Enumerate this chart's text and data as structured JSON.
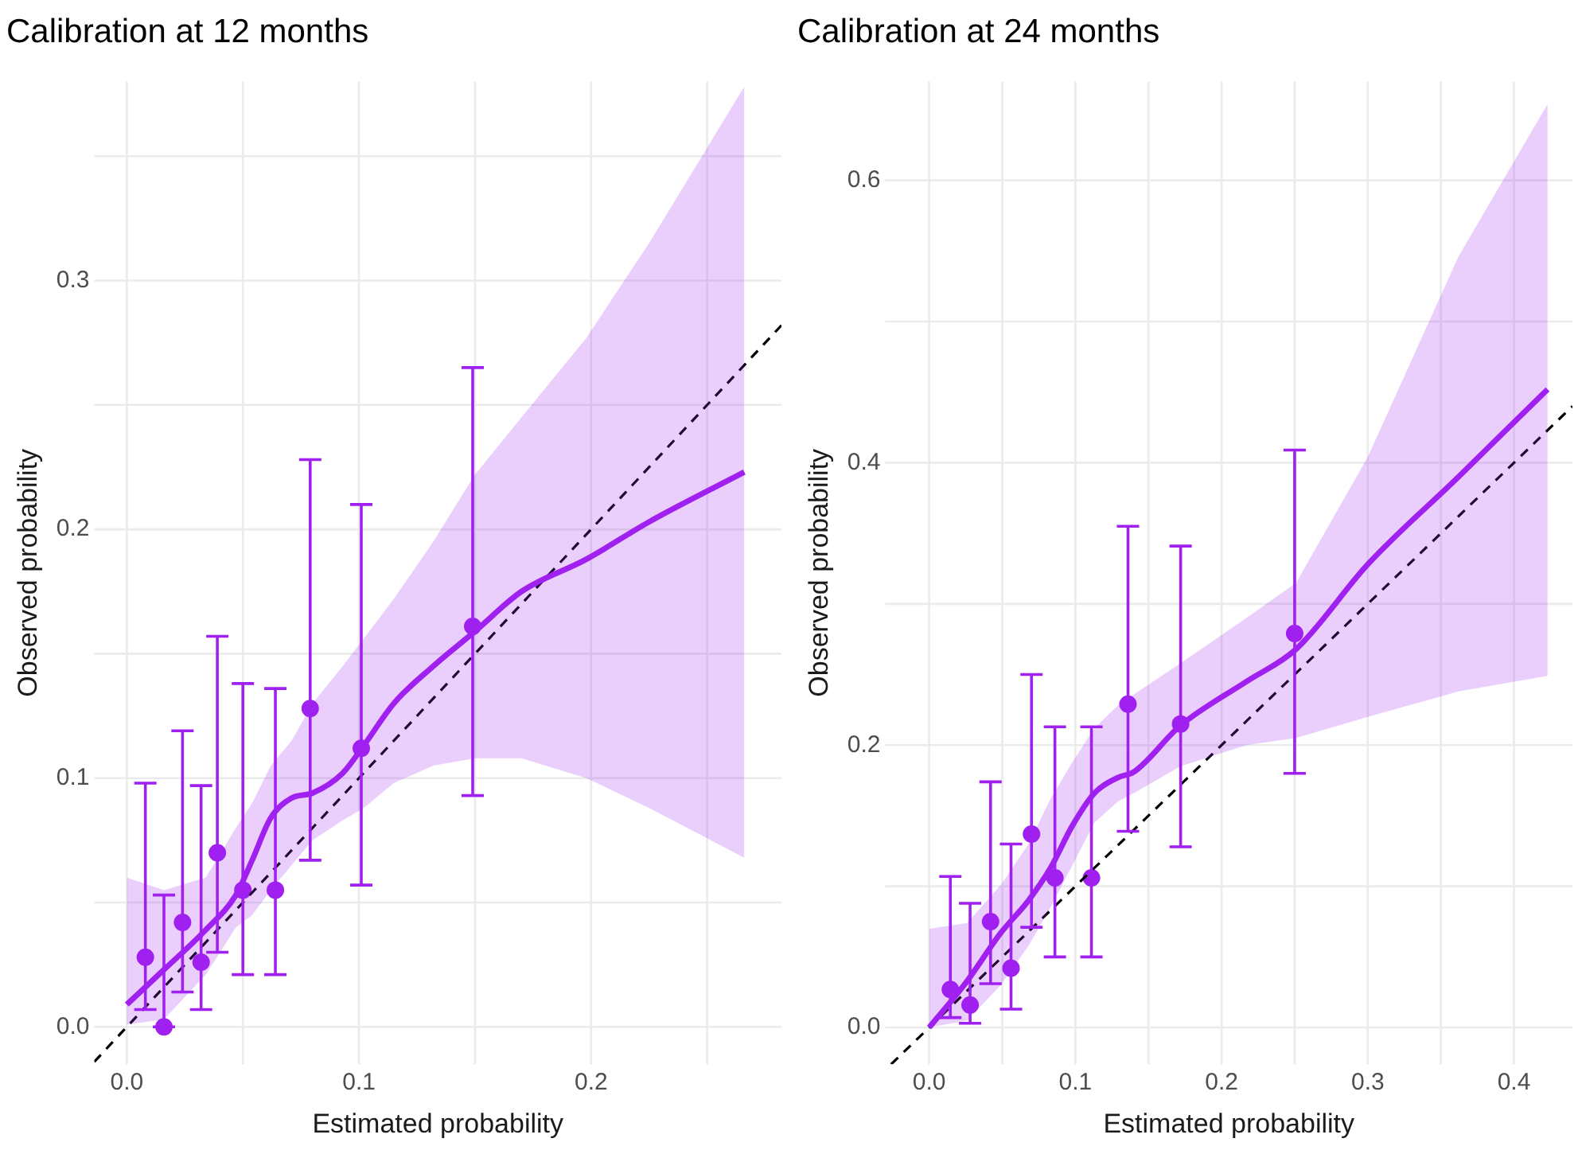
{
  "chart_data": [
    {
      "type": "scatter",
      "title": "Calibration at 12 months",
      "xlabel": "Estimated probability",
      "ylabel": "Observed probability",
      "grid": true,
      "xlim": [
        -0.014,
        0.282
      ],
      "ylim": [
        -0.015,
        0.38
      ],
      "xticks": [
        {
          "value": 0,
          "label": "0.0"
        },
        {
          "value": 0.05,
          "label": null
        },
        {
          "value": 0.1,
          "label": "0.1"
        },
        {
          "value": 0.15,
          "label": null
        },
        {
          "value": 0.2,
          "label": "0.2"
        },
        {
          "value": 0.25,
          "label": null
        }
      ],
      "yticks": [
        {
          "value": 0,
          "label": "0.0"
        },
        {
          "value": 0.05,
          "label": null
        },
        {
          "value": 0.1,
          "label": "0.1"
        },
        {
          "value": 0.15,
          "label": null
        },
        {
          "value": 0.2,
          "label": "0.2"
        },
        {
          "value": 0.25,
          "label": null
        },
        {
          "value": 0.3,
          "label": "0.3"
        },
        {
          "value": 0.35,
          "label": null
        }
      ],
      "series": [
        {
          "type": "line",
          "color": "#a020f0",
          "marker": "none",
          "x": [
            0,
            0.016,
            0.034,
            0.047,
            0.054,
            0.062,
            0.071,
            0.08,
            0.093,
            0.102,
            0.115,
            0.132,
            0.15,
            0.17,
            0.198,
            0.225,
            0.266
          ],
          "values": [
            0.009,
            0.023,
            0.039,
            0.053,
            0.067,
            0.084,
            0.092,
            0.094,
            0.102,
            0.113,
            0.13,
            0.145,
            0.159,
            0.175,
            0.188,
            0.203,
            0.223
          ],
          "lower": [
            0.001,
            0.003,
            0.021,
            0.04,
            0.045,
            0.055,
            0.065,
            0.075,
            0.083,
            0.088,
            0.098,
            0.105,
            0.108,
            0.108,
            0.1,
            0.088,
            0.068
          ],
          "upper": [
            0.06,
            0.055,
            0.06,
            0.08,
            0.09,
            0.105,
            0.115,
            0.13,
            0.145,
            0.156,
            0.172,
            0.195,
            0.222,
            0.245,
            0.277,
            0.315,
            0.378
          ]
        },
        {
          "type": "line",
          "color": "#000000",
          "marker": "none",
          "line_style": "dashed",
          "x": [
            -0.014,
            0.282
          ],
          "values": [
            -0.014,
            0.282
          ]
        },
        {
          "type": "scatter",
          "color": "#a020f0",
          "marker": "circle",
          "x": [
            0.008,
            0.016,
            0.024,
            0.032,
            0.039,
            0.05,
            0.064,
            0.079,
            0.101,
            0.149
          ],
          "values": [
            0.028,
            0,
            0.042,
            0.026,
            0.07,
            0.055,
            0.055,
            0.128,
            0.112,
            0.161
          ],
          "errors": [
            [
              0.007,
              0.098
            ],
            [
              0,
              0.053
            ],
            [
              0.014,
              0.119
            ],
            [
              0.007,
              0.097
            ],
            [
              0.03,
              0.157
            ],
            [
              0.021,
              0.138
            ],
            [
              0.021,
              0.136
            ],
            [
              0.067,
              0.228
            ],
            [
              0.057,
              0.21
            ],
            [
              0.093,
              0.265
            ]
          ]
        }
      ]
    },
    {
      "type": "scatter",
      "title": "Calibration at 24 months",
      "xlabel": "Estimated probability",
      "ylabel": "Observed probability",
      "grid": true,
      "xlim": [
        -0.03,
        0.44
      ],
      "ylim": [
        -0.026,
        0.67
      ],
      "xticks": [
        {
          "value": 0,
          "label": "0.0"
        },
        {
          "value": 0.05,
          "label": null
        },
        {
          "value": 0.1,
          "label": "0.1"
        },
        {
          "value": 0.15,
          "label": null
        },
        {
          "value": 0.2,
          "label": "0.2"
        },
        {
          "value": 0.25,
          "label": null
        },
        {
          "value": 0.3,
          "label": "0.3"
        },
        {
          "value": 0.35,
          "label": null
        },
        {
          "value": 0.4,
          "label": "0.4"
        }
      ],
      "yticks": [
        {
          "value": 0,
          "label": "0.0"
        },
        {
          "value": 0.1,
          "label": null
        },
        {
          "value": 0.2,
          "label": "0.2"
        },
        {
          "value": 0.3,
          "label": null
        },
        {
          "value": 0.4,
          "label": "0.4"
        },
        {
          "value": 0.5,
          "label": null
        },
        {
          "value": 0.6,
          "label": "0.6"
        }
      ],
      "series": [
        {
          "type": "line",
          "color": "#a020f0",
          "marker": "none",
          "x": [
            0,
            0.026,
            0.049,
            0.068,
            0.083,
            0.098,
            0.113,
            0.129,
            0.14,
            0.172,
            0.217,
            0.251,
            0.3,
            0.362,
            0.423
          ],
          "values": [
            0,
            0.033,
            0.067,
            0.09,
            0.113,
            0.143,
            0.166,
            0.177,
            0.181,
            0.214,
            0.245,
            0.268,
            0.328,
            0.39,
            0.452
          ],
          "lower": [
            0,
            0.005,
            0.03,
            0.058,
            0.085,
            0.115,
            0.145,
            0.16,
            0.166,
            0.185,
            0.2,
            0.205,
            0.22,
            0.238,
            0.249
          ],
          "upper": [
            0.07,
            0.074,
            0.101,
            0.13,
            0.162,
            0.188,
            0.212,
            0.228,
            0.236,
            0.258,
            0.29,
            0.315,
            0.404,
            0.546,
            0.654
          ]
        },
        {
          "type": "line",
          "color": "#000000",
          "marker": "none",
          "line_style": "dashed",
          "x": [
            -0.026,
            0.44
          ],
          "values": [
            -0.026,
            0.44
          ]
        },
        {
          "type": "scatter",
          "color": "#a020f0",
          "marker": "circle",
          "x": [
            0.0145,
            0.028,
            0.042,
            0.056,
            0.07,
            0.086,
            0.111,
            0.136,
            0.172,
            0.25
          ],
          "values": [
            0.027,
            0.016,
            0.075,
            0.042,
            0.137,
            0.106,
            0.106,
            0.229,
            0.215,
            0.279
          ],
          "errors": [
            [
              0.007,
              0.107
            ],
            [
              0.003,
              0.088
            ],
            [
              0.031,
              0.174
            ],
            [
              0.013,
              0.13
            ],
            [
              0.071,
              0.25
            ],
            [
              0.05,
              0.213
            ],
            [
              0.05,
              0.213
            ],
            [
              0.139,
              0.355
            ],
            [
              0.128,
              0.341
            ],
            [
              0.18,
              0.409
            ]
          ]
        }
      ]
    }
  ]
}
